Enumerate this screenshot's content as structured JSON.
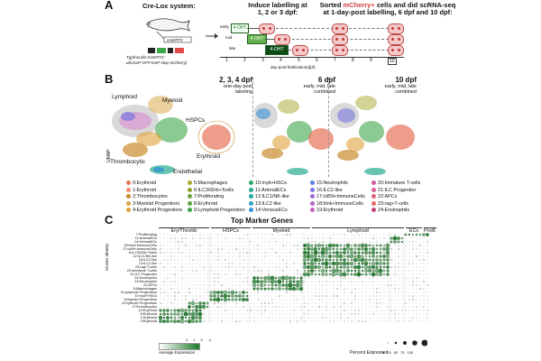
{
  "panels": {
    "A": "A",
    "B": "B",
    "C": "C"
  },
  "panelA": {
    "title": "Cre-Lox system:",
    "fish_label": "drl",
    "creER_label": "creERT2",
    "construct": "Tg(draculin:creERT2;\nubi:loxP-GFP-loxP-stop-mCherry)",
    "induce_title": "Induce labelling at\n1, 2 or 3 dpf:",
    "sorted_title_parts": [
      "Sorted ",
      "mCherry+",
      " cells and did scRNA-seq\nat 1-day-post labelling, 6 dpf and 10 dpf:"
    ],
    "rows": [
      "early",
      "mid",
      "late"
    ],
    "drug": "4-OHT",
    "axis_ticks": [
      "1",
      "2",
      "3",
      "4",
      "5",
      "6",
      "7",
      "8",
      "9",
      "10"
    ],
    "axis_label": "day-post-fertilization(dpf)"
  },
  "panelB": {
    "umaps": [
      {
        "title": "2, 3, 4 dpf",
        "subtitle": "one-day-post\nlabeling"
      },
      {
        "title": "6 dpf",
        "subtitle": "early, mid, late\ncombined"
      },
      {
        "title": "10 dpf",
        "subtitle": "early, mid, late\ncombined"
      }
    ],
    "region_labels": [
      "Lymphoid",
      "Myeloid",
      "HSPCs",
      "Erythroid",
      "Thrombocytic",
      "Endothelial"
    ],
    "axis_label": "UMAP",
    "legend": [
      {
        "label": "0:Erythroid",
        "color": "#e8745a"
      },
      {
        "label": "1:Erythroid",
        "color": "#f08a6c"
      },
      {
        "label": "2:Thrombocytes",
        "color": "#c98b2e"
      },
      {
        "label": "3:Myeloid Progenitors",
        "color": "#d9a441"
      },
      {
        "label": "4:Erythroid Progenitors",
        "color": "#e0a23c"
      },
      {
        "label": "5:Macrophages",
        "color": "#a6a82b"
      },
      {
        "label": "6:ILC3/il2rb+Tcells",
        "color": "#8aa62b"
      },
      {
        "label": "7:Proliferating",
        "color": "#6fa23a"
      },
      {
        "label": "8:Erythroid",
        "color": "#55a540"
      },
      {
        "label": "9:Lymphoid Progenitors",
        "color": "#3ea64a"
      },
      {
        "label": "10:myb+HSCs",
        "color": "#2eaa6e"
      },
      {
        "label": "11:ArterialECs",
        "color": "#28ab8e"
      },
      {
        "label": "12:ILC1/NK-like",
        "color": "#25a9a8"
      },
      {
        "label": "13:ILC2-like",
        "color": "#2aa2c2"
      },
      {
        "label": "14:VenousECs",
        "color": "#3592d6"
      },
      {
        "label": "15:Neutrophils",
        "color": "#5682e0"
      },
      {
        "label": "16:ILC2-like",
        "color": "#7a76df"
      },
      {
        "label": "17:cd59+ImmuneCells",
        "color": "#9b6cd8"
      },
      {
        "label": "18:blnk+ImmuneCells",
        "color": "#b464cc"
      },
      {
        "label": "19:Erythroid",
        "color": "#c75fbc"
      },
      {
        "label": "20:Immature T-cells",
        "color": "#d25da8"
      },
      {
        "label": "21:ILC Progenitor",
        "color": "#db5f93"
      },
      {
        "label": "22:APCs",
        "color": "#e0647d"
      },
      {
        "label": "23:rag+T-cells",
        "color": "#e56d6a"
      },
      {
        "label": "24:Eosinophils",
        "color": "#c0447a"
      }
    ]
  },
  "panelC": {
    "title": "Top Marker Genes",
    "groups": [
      "Ery/Thromb",
      "HSPCs",
      "Myeloid",
      "Lymphoid",
      "ECs",
      "Prolif."
    ],
    "y_axis": "Cluster Identity",
    "clusters": [
      "7:Proliferating",
      "11:ArterialECs",
      "14:VenousECs",
      "18:blnk+ImmuneCells",
      "17:cd59+ImmuneCells",
      "6:ILC3/il2rb+Tcells",
      "12:ILC1/NK-like",
      "16:ILC2-like",
      "13:ILC2-like",
      "23:rag+T-cells",
      "20:Immature T-cells",
      "21:ILC Progenitor",
      "24:Eosinophils",
      "15:Neutrophils",
      "22:APCs",
      "5:Macrophages",
      "9:Lymphoid Progenitors",
      "10:myb+HSCs",
      "3:Myeloid Progenitors",
      "4:Erythroid Progenitors",
      "2:Thrombocytes",
      "19:Erythroid",
      "8:Erythroid",
      "1:Erythroid",
      "0:Erythroid"
    ],
    "legend_expr_title": "Average Expression",
    "legend_expr_ticks": [
      "-1",
      "0",
      "1",
      "2"
    ],
    "legend_pct_title": "Percent Expressed",
    "legend_pct_ticks": [
      "0",
      "25",
      "50",
      "75",
      "100"
    ]
  },
  "colors": {
    "accent_green": "#1e7a2a",
    "mcherry_red": "#d23c3c"
  }
}
